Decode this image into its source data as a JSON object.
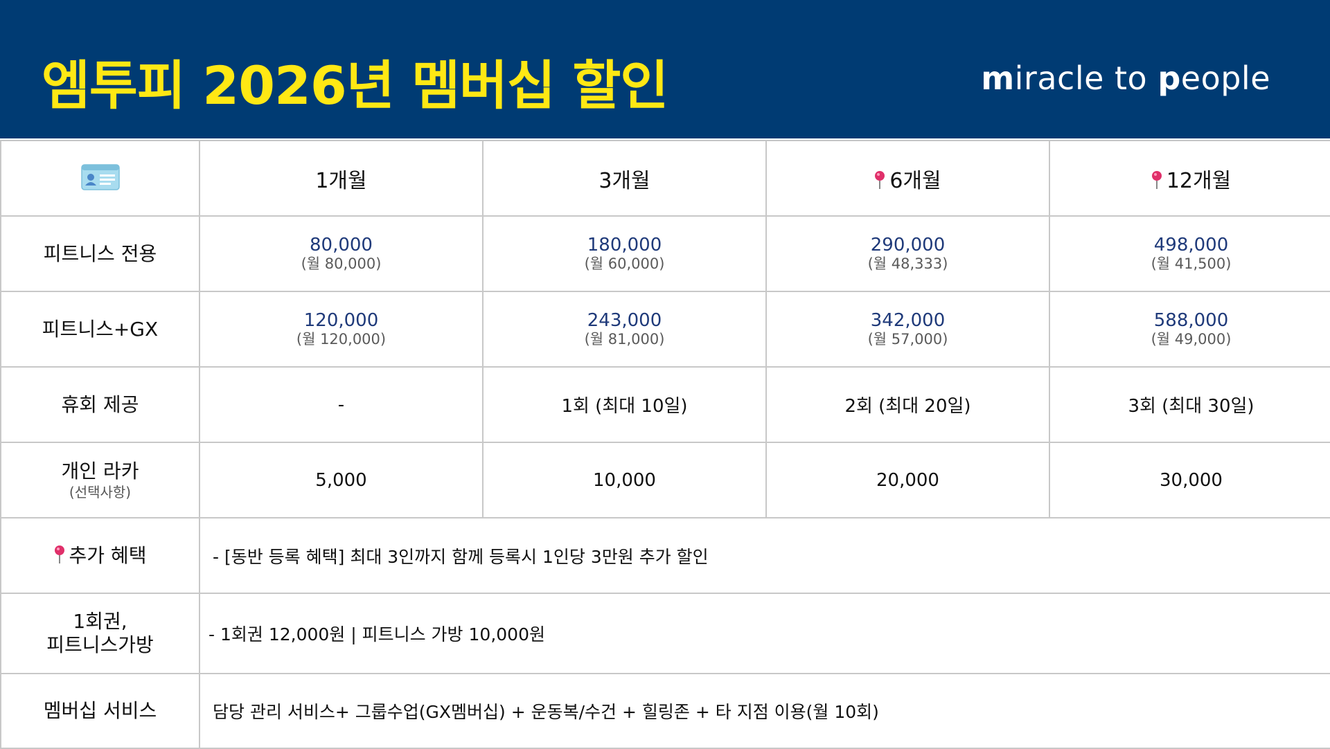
{
  "header": {
    "title": "엠투피 2026년 멤버십 할인",
    "brand_parts": [
      "m",
      "iracle to ",
      "p",
      "eople"
    ],
    "background": "#003b73",
    "title_color": "#ffe814"
  },
  "table": {
    "corner_icon": "id-card-icon",
    "columns": [
      "1개월",
      "3개월",
      "6개월",
      "12개월"
    ],
    "pinned_columns": [
      "6개월",
      "12개월"
    ],
    "rows": {
      "fitness_only": {
        "label": "피트니스 전용",
        "cells": [
          {
            "price": "80,000",
            "monthly": "(월 80,000)"
          },
          {
            "price": "180,000",
            "monthly": "(월 60,000)"
          },
          {
            "price": "290,000",
            "monthly": "(월 48,333)"
          },
          {
            "price": "498,000",
            "monthly": "(월 41,500)"
          }
        ]
      },
      "fitness_gx": {
        "label": "피트니스+GX",
        "cells": [
          {
            "price": "120,000",
            "monthly": "(월 120,000)"
          },
          {
            "price": "243,000",
            "monthly": "(월 81,000)"
          },
          {
            "price": "342,000",
            "monthly": "(월 57,000)"
          },
          {
            "price": "588,000",
            "monthly": "(월 49,000)"
          }
        ]
      },
      "pause": {
        "label": "휴회 제공",
        "cells": [
          "-",
          "1회 (최대 10일)",
          "2회 (최대 20일)",
          "3회 (최대 30일)"
        ]
      },
      "locker": {
        "label": "개인 라카",
        "sublabel": "(선택사항)",
        "cells": [
          "5,000",
          "10,000",
          "20,000",
          "30,000"
        ]
      },
      "extra": {
        "label": "추가 혜택",
        "text": "- [동반 등록 혜택] 최대 3인까지 함께 등록시 1인당 3만원 추가 할인"
      },
      "single": {
        "label_line1": "1회권,",
        "label_line2": "피트니스가방",
        "text": "- 1회권 12,000원  |  피트니스 가방 10,000원"
      },
      "service": {
        "label": "멤버십 서비스",
        "text": "담당 관리 서비스+ 그룹수업(GX멤버십) + 운동복/수건 + 힐링존 + 타 지점 이용(월 10회)"
      }
    }
  }
}
